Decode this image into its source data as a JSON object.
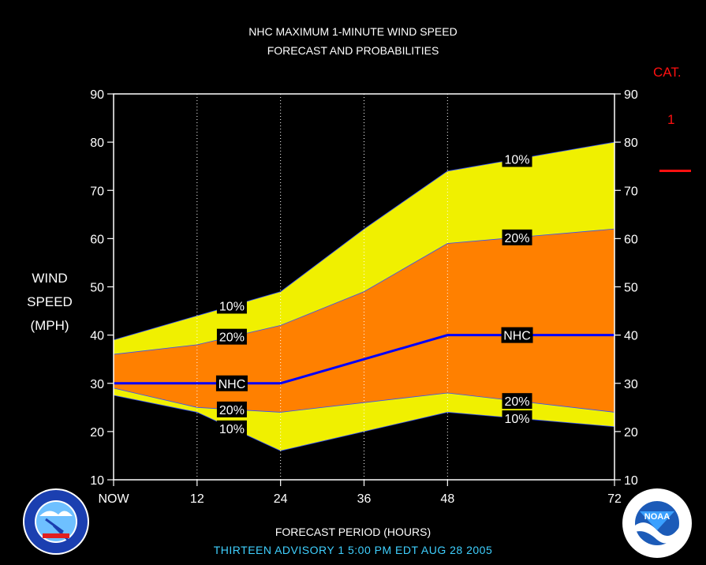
{
  "title_line1": "NHC MAXIMUM 1-MINUTE WIND SPEED",
  "title_line2": "FORECAST AND PROBABILITIES",
  "ylabel": "WIND SPEED (MPH)",
  "xlabel": "FORECAST PERIOD (HOURS)",
  "advisory": "THIRTEEN   ADVISORY  1 5:00 PM EDT AUG 28 2005",
  "category": {
    "title": "CAT.",
    "value": "1"
  },
  "logos": {
    "left": "nws-logo",
    "right": "noaa-logo",
    "noaa_text": "NOAA"
  },
  "colors": {
    "background": "#000000",
    "band_10": "#f0f000",
    "band_20": "#ff8000",
    "nhc_line": "#0000ff",
    "category_line": "#ff1010",
    "advisory_text": "#3fd0ff",
    "label_box": "#000000"
  },
  "chart_data": {
    "type": "area",
    "title": "NHC MAXIMUM 1-MINUTE WIND SPEED FORECAST AND PROBABILITIES",
    "xlabel": "FORECAST PERIOD (HOURS)",
    "ylabel": "WIND SPEED (MPH)",
    "xlim": [
      0,
      72
    ],
    "ylim": [
      10,
      90
    ],
    "x_ticks": [
      0,
      12,
      24,
      36,
      48,
      72
    ],
    "x_tick_labels": [
      "NOW",
      "12",
      "24",
      "36",
      "48",
      "72"
    ],
    "y_ticks": [
      10,
      20,
      30,
      40,
      50,
      60,
      70,
      80,
      90
    ],
    "x": [
      0,
      12,
      24,
      36,
      48,
      72
    ],
    "series": [
      {
        "name": "10%",
        "values": [
          39,
          44,
          49,
          62,
          74,
          80
        ],
        "label_x": [
          17,
          58
        ]
      },
      {
        "name": "20%",
        "values": [
          36,
          38,
          42,
          49,
          59,
          62
        ],
        "label_x": [
          17,
          58
        ]
      },
      {
        "name": "NHC",
        "values": [
          30,
          30,
          30,
          35,
          40,
          40
        ],
        "label_x": [
          17,
          58
        ]
      },
      {
        "name": "20%",
        "values": [
          29,
          25,
          24,
          26,
          28,
          24
        ],
        "label_x": [
          17,
          58
        ]
      },
      {
        "name": "10%",
        "values": [
          27.5,
          24,
          16,
          20,
          24,
          21
        ],
        "label_x": [
          17,
          58
        ]
      }
    ],
    "category_thresholds": [
      74
    ]
  }
}
